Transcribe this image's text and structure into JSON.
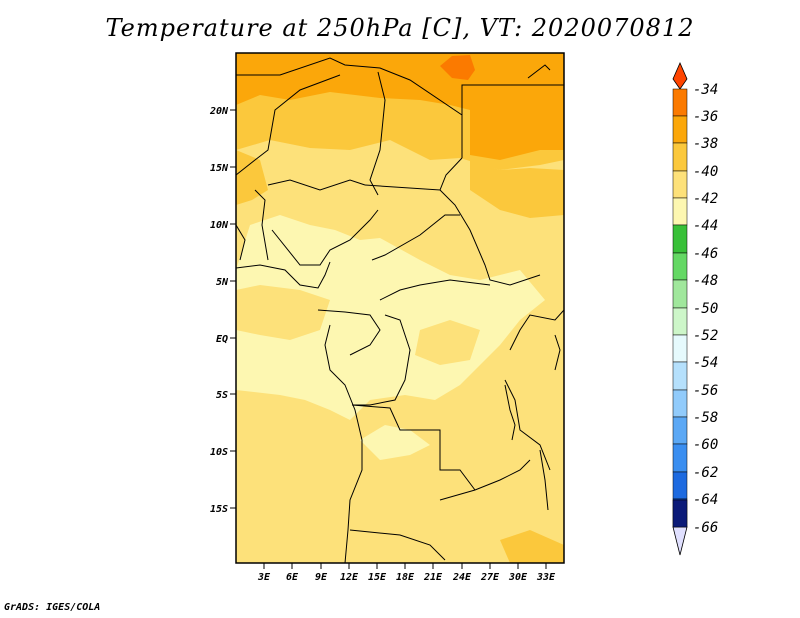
{
  "title": "Temperature at 250hPa [C], VT: 2020070812",
  "credit": "GrADS: IGES/COLA",
  "lat_labels": [
    "20N",
    "15N",
    "10N",
    "5N",
    "EQ",
    "5S",
    "10S",
    "15S"
  ],
  "lon_labels": [
    "3E",
    "6E",
    "9E",
    "12E",
    "15E",
    "18E",
    "21E",
    "24E",
    "27E",
    "30E",
    "33E"
  ],
  "colorbar": {
    "labels": [
      "-34",
      "-36",
      "-38",
      "-40",
      "-42",
      "-44",
      "-46",
      "-48",
      "-50",
      "-52",
      "-54",
      "-56",
      "-58",
      "-60",
      "-62",
      "-64",
      "-66"
    ],
    "colors": [
      "#ff4500",
      "#fb7a00",
      "#fba70a",
      "#fbc83c",
      "#fde17a",
      "#fdf7b1",
      "#38c038",
      "#64d864",
      "#a0e79c",
      "#cdf6c9",
      "#e6fafd",
      "#b5e0fc",
      "#91cbfb",
      "#5ba8f5",
      "#3a8ef0",
      "#1d6ae0",
      "#0d44c8",
      "#0b1a78",
      "#e0e0ff"
    ]
  },
  "map_legend_colors": {
    "minus34_36": "#fb7a00",
    "minus36_38": "#fba70a",
    "minus38_40": "#fbc83c",
    "minus40_42": "#fde17a",
    "minus42_44": "#fdf7b1"
  }
}
